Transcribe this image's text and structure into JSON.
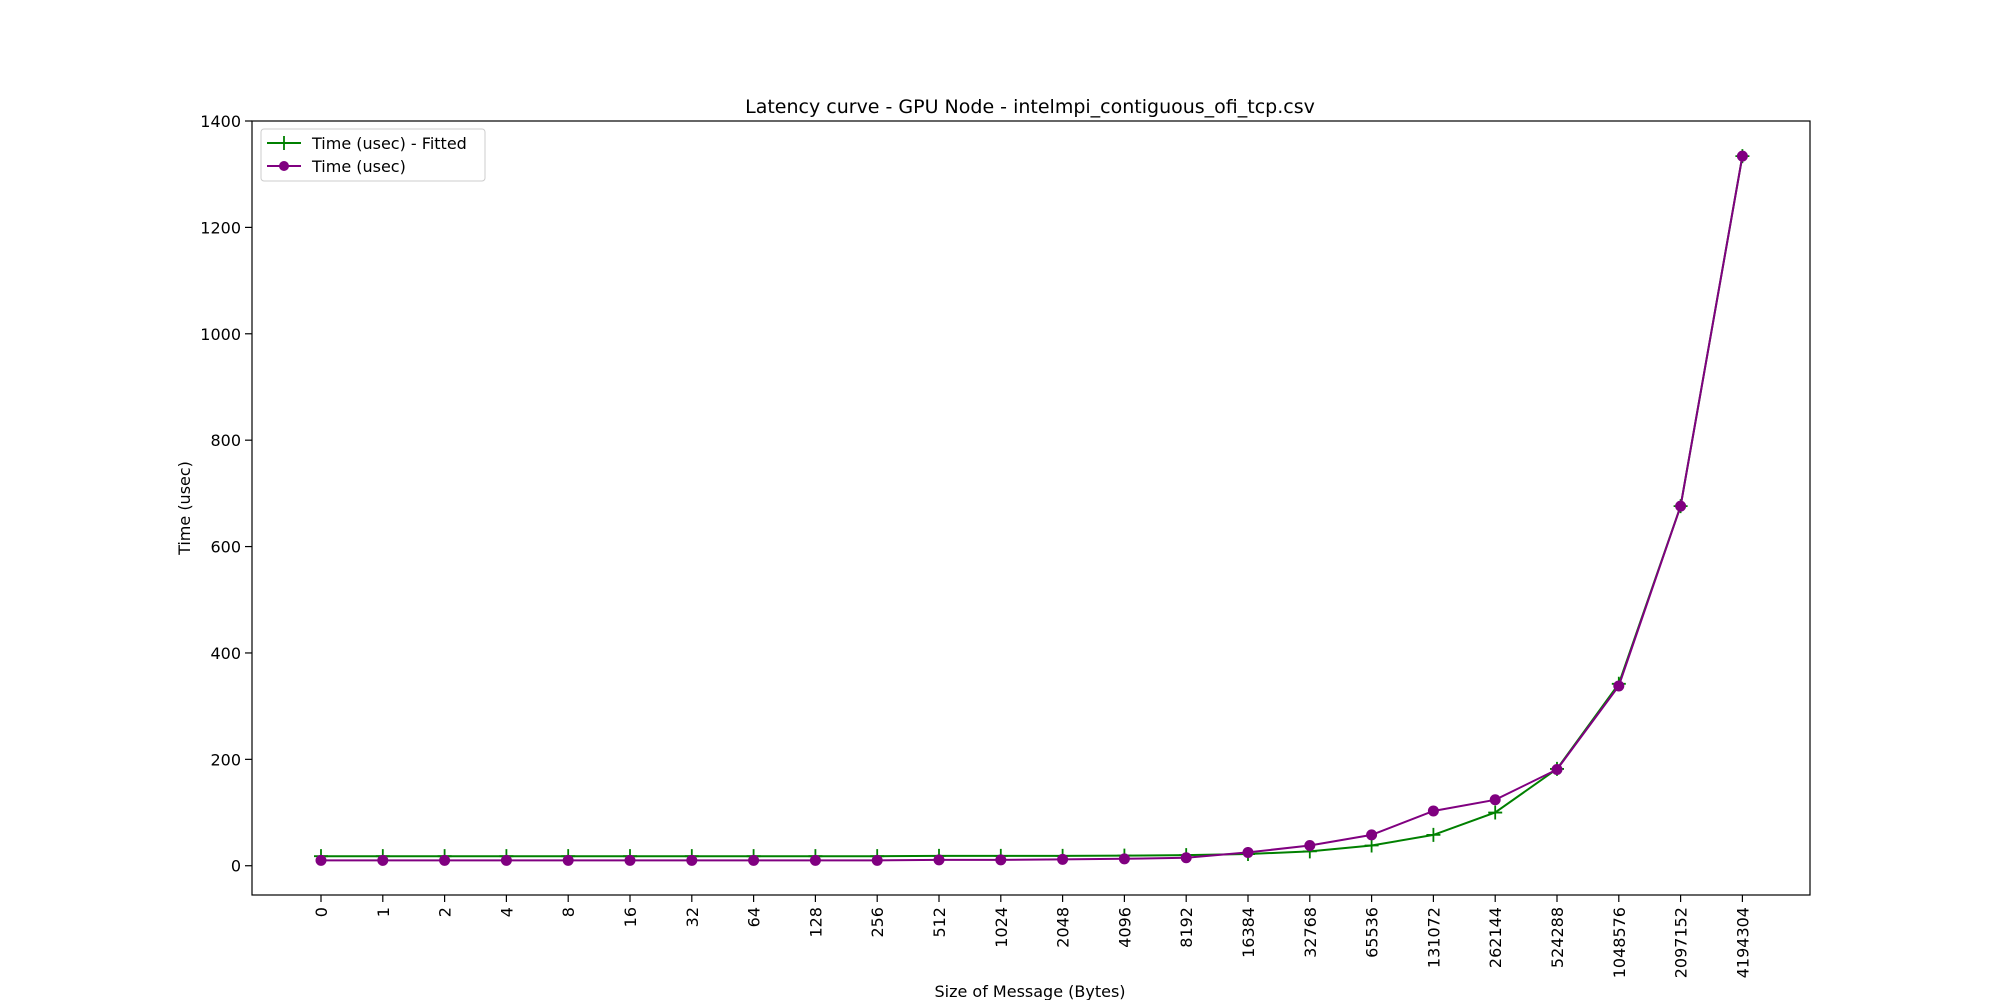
{
  "chart_data": {
    "type": "line",
    "title": "Latency curve - GPU Node - intelmpi_contiguous_ofi_tcp.csv",
    "xlabel": "Size of Message (Bytes)",
    "ylabel": "Time (usec)",
    "categories": [
      "0",
      "1",
      "2",
      "4",
      "8",
      "16",
      "32",
      "64",
      "128",
      "256",
      "512",
      "1024",
      "2048",
      "4096",
      "8192",
      "16384",
      "32768",
      "65536",
      "131072",
      "262144",
      "524288",
      "1048576",
      "2097152",
      "4194304"
    ],
    "ylim": [
      -55,
      1400
    ],
    "yticks": [
      0,
      200,
      400,
      600,
      800,
      1000,
      1200,
      1400
    ],
    "grid": false,
    "legend_position": "upper left",
    "series": [
      {
        "name": "Time (usec) - Fitted",
        "color": "#008000",
        "marker": "plus",
        "values": [
          18,
          18,
          18,
          18,
          18,
          18,
          18,
          18,
          18,
          18,
          18.5,
          18.5,
          18.5,
          19,
          20,
          22,
          27,
          38,
          58,
          100,
          182,
          342,
          676,
          1334
        ]
      },
      {
        "name": "Time (usec)",
        "color": "#800080",
        "marker": "circle",
        "values": [
          10,
          10,
          10,
          10,
          10,
          10,
          10,
          10,
          10,
          10,
          11,
          11,
          12,
          13,
          15,
          25,
          38,
          58,
          103,
          124,
          181,
          338,
          676,
          1334
        ]
      }
    ]
  }
}
